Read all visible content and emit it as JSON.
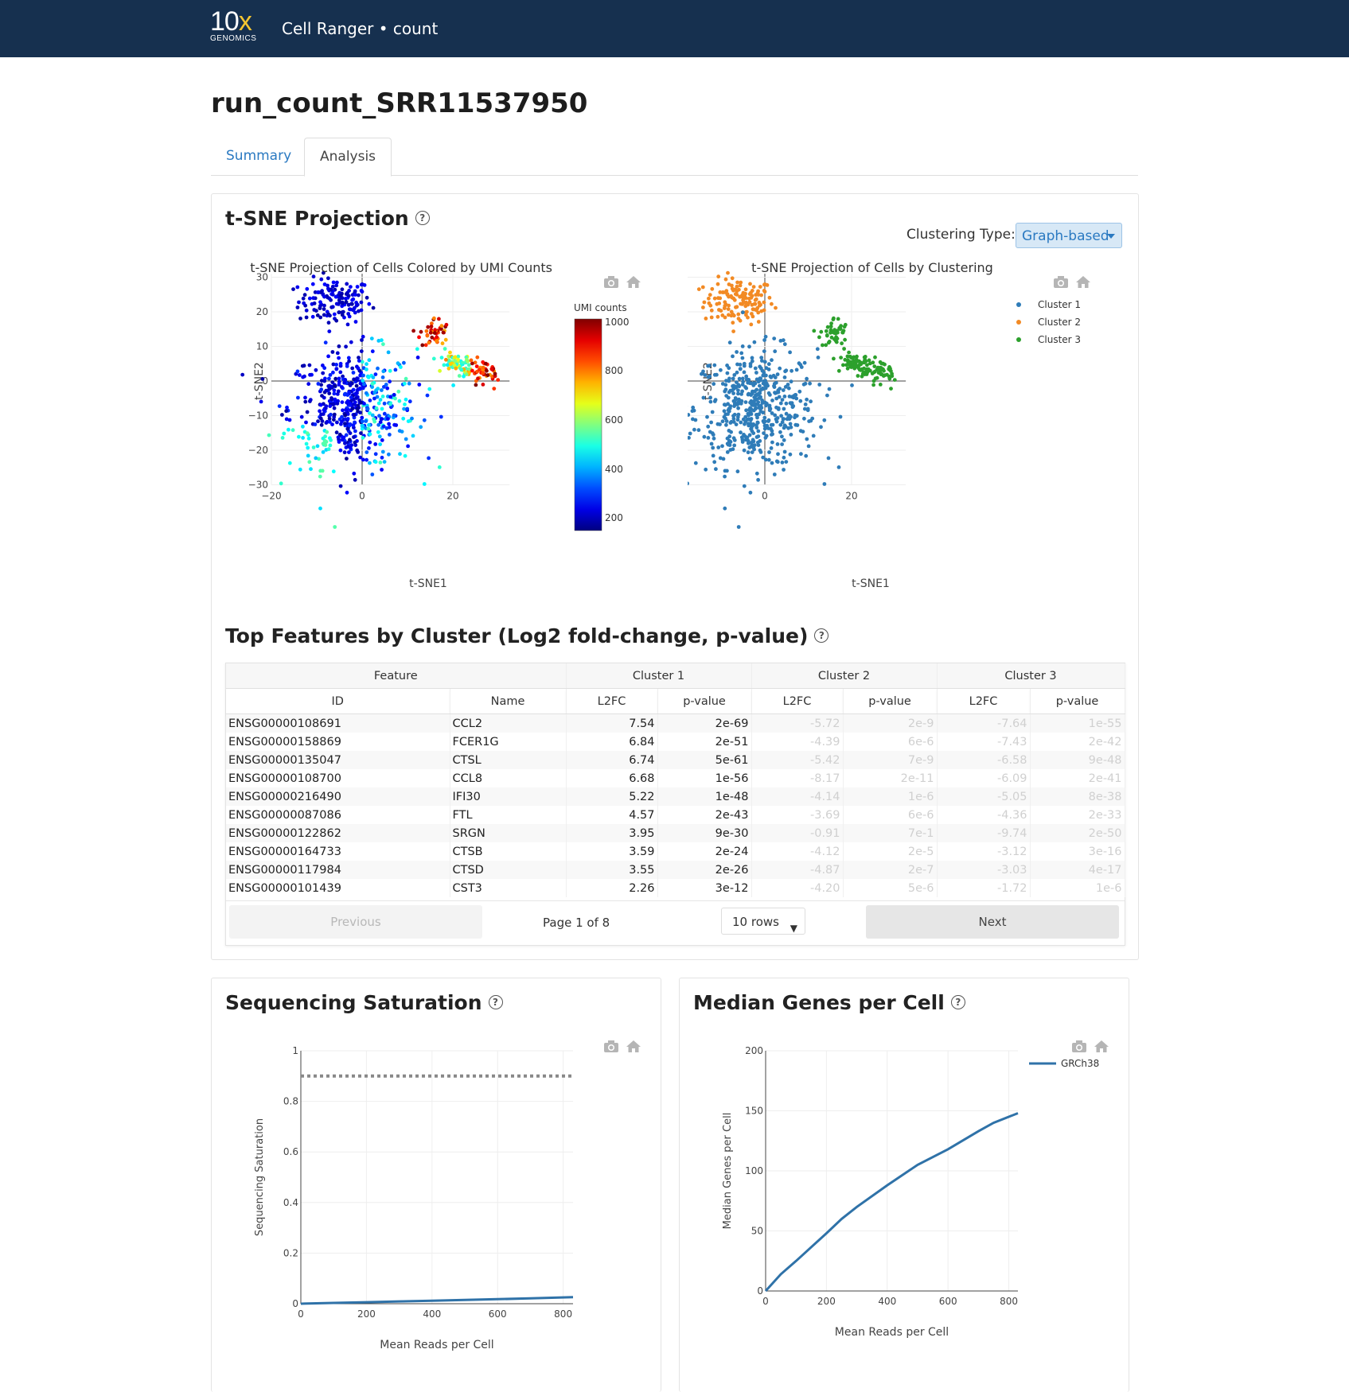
{
  "header": {
    "logo_main": "10",
    "logo_x": "x",
    "logo_sub": "GENOMICS",
    "app_title": "Cell Ranger • count"
  },
  "page_title": "run_count_SRR11537950",
  "tabs": [
    {
      "label": "Summary",
      "active": false
    },
    {
      "label": "Analysis",
      "active": true
    }
  ],
  "tsne_section": {
    "heading": "t-SNE Projection",
    "clustering_label": "Clustering Type:",
    "clustering_value": "Graph-based",
    "umi_plot": {
      "title": "t-SNE Projection of Cells Colored by UMI Counts",
      "colorbar_title": "UMI counts",
      "colorbar_ticks": [
        "1000",
        "800",
        "600",
        "400",
        "200"
      ]
    },
    "cluster_plot": {
      "title": "t-SNE Projection of Cells by Clustering",
      "legend": [
        "Cluster 1",
        "Cluster 2",
        "Cluster 3"
      ]
    },
    "xlabel": "t-SNE1",
    "ylabel": "t-SNE2",
    "x_ticks": [
      "−20",
      "0",
      "20"
    ],
    "y_ticks": [
      "30",
      "20",
      "10",
      "0",
      "−10",
      "−20",
      "−30"
    ]
  },
  "features_section": {
    "heading": "Top Features by Cluster (Log2 fold-change, p-value)",
    "group_headers": [
      "Feature",
      "Cluster 1",
      "Cluster 2",
      "Cluster 3"
    ],
    "col_headers": [
      "ID",
      "Name",
      "L2FC",
      "p-value",
      "L2FC",
      "p-value",
      "L2FC",
      "p-value"
    ],
    "rows": [
      [
        "ENSG00000108691",
        "CCL2",
        "7.54",
        "2e-69",
        "-5.72",
        "2e-9",
        "-7.64",
        "1e-55"
      ],
      [
        "ENSG00000158869",
        "FCER1G",
        "6.84",
        "2e-51",
        "-4.39",
        "6e-6",
        "-7.43",
        "2e-42"
      ],
      [
        "ENSG00000135047",
        "CTSL",
        "6.74",
        "5e-61",
        "-5.42",
        "7e-9",
        "-6.58",
        "9e-48"
      ],
      [
        "ENSG00000108700",
        "CCL8",
        "6.68",
        "1e-56",
        "-8.17",
        "2e-11",
        "-6.09",
        "2e-41"
      ],
      [
        "ENSG00000216490",
        "IFI30",
        "5.22",
        "1e-48",
        "-4.14",
        "1e-6",
        "-5.05",
        "8e-38"
      ],
      [
        "ENSG00000087086",
        "FTL",
        "4.57",
        "2e-43",
        "-3.69",
        "6e-6",
        "-4.36",
        "2e-33"
      ],
      [
        "ENSG00000122862",
        "SRGN",
        "3.95",
        "9e-30",
        "-0.91",
        "7e-1",
        "-9.74",
        "2e-50"
      ],
      [
        "ENSG00000164733",
        "CTSB",
        "3.59",
        "2e-24",
        "-4.12",
        "2e-5",
        "-3.12",
        "3e-16"
      ],
      [
        "ENSG00000117984",
        "CTSD",
        "3.55",
        "2e-26",
        "-4.87",
        "2e-7",
        "-3.03",
        "4e-17"
      ],
      [
        "ENSG00000101439",
        "CST3",
        "2.26",
        "3e-12",
        "-4.20",
        "5e-6",
        "-1.72",
        "1e-6"
      ]
    ],
    "pager": {
      "previous": "Previous",
      "next": "Next",
      "page_info": "Page 1 of 8",
      "rows_select": "10 rows"
    }
  },
  "saturation_section": {
    "heading": "Sequencing Saturation",
    "xlabel": "Mean Reads per Cell",
    "ylabel": "Sequencing Saturation",
    "x_ticks": [
      "0",
      "200",
      "400",
      "600",
      "800"
    ],
    "y_ticks": [
      "1",
      "0.8",
      "0.6",
      "0.4",
      "0.2",
      "0"
    ]
  },
  "genes_section": {
    "heading": "Median Genes per Cell",
    "xlabel": "Mean Reads per Cell",
    "ylabel": "Median Genes per Cell",
    "x_ticks": [
      "0",
      "200",
      "400",
      "600",
      "800"
    ],
    "y_ticks": [
      "200",
      "150",
      "100",
      "50",
      "0"
    ],
    "legend": "GRCh38"
  },
  "colors": {
    "header_bg": "#16304f",
    "accent": "#2a79c1",
    "cluster1": "#2f7cb8",
    "cluster2": "#f28a24",
    "cluster3": "#2ca02c"
  },
  "chart_data": [
    {
      "type": "line",
      "title": "",
      "xlabel": "Mean Reads per Cell",
      "ylabel": "Sequencing Saturation",
      "xlim": [
        0,
        830
      ],
      "ylim": [
        0,
        1
      ],
      "series": [
        {
          "x": [
            0,
            100,
            200,
            300,
            400,
            500,
            600,
            700,
            830
          ],
          "values": [
            0,
            0.003,
            0.006,
            0.009,
            0.012,
            0.015,
            0.018,
            0.021,
            0.026
          ]
        }
      ],
      "reference_line": 0.9
    },
    {
      "type": "line",
      "title": "",
      "xlabel": "Mean Reads per Cell",
      "ylabel": "Median Genes per Cell",
      "xlim": [
        0,
        830
      ],
      "ylim": [
        0,
        200
      ],
      "series": [
        {
          "name": "GRCh38",
          "x": [
            0,
            50,
            100,
            200,
            250,
            300,
            400,
            500,
            600,
            700,
            750,
            830
          ],
          "values": [
            0,
            14,
            25,
            48,
            60,
            70,
            88,
            105,
            118,
            133,
            140,
            148
          ]
        }
      ]
    }
  ]
}
